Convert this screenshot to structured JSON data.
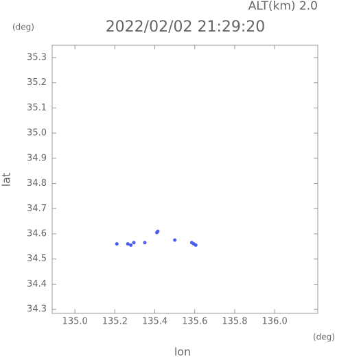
{
  "chart_data": {
    "type": "scatter",
    "title": "2022/02/02 21:29:20",
    "subtitle": "ALT(km) 2.0",
    "y_unit": "(deg)",
    "x_unit": "(deg)",
    "xlabel": "lon",
    "ylabel": "lat",
    "xlim": [
      134.886,
      136.216
    ],
    "ylim": [
      34.284,
      35.349
    ],
    "xticks": [
      {
        "value": 135,
        "label": "135.0"
      },
      135.2,
      135.4,
      135.6,
      135.8,
      {
        "value": 136,
        "label": "136.0"
      }
    ],
    "yticks": [
      34.3,
      34.4,
      34.5,
      34.6,
      34.7,
      34.8,
      34.9,
      {
        "value": 35,
        "label": "35.0"
      },
      35.1,
      35.2,
      35.3
    ],
    "series": [
      {
        "color": "#4a5cf0",
        "x": [
          135.21,
          135.265,
          135.28,
          135.295,
          135.35,
          135.41,
          135.415,
          135.5,
          135.585,
          135.595,
          135.605
        ],
        "values": [
          34.56,
          34.56,
          34.555,
          34.565,
          34.565,
          34.605,
          34.61,
          34.575,
          34.565,
          34.56,
          34.555
        ]
      }
    ]
  }
}
